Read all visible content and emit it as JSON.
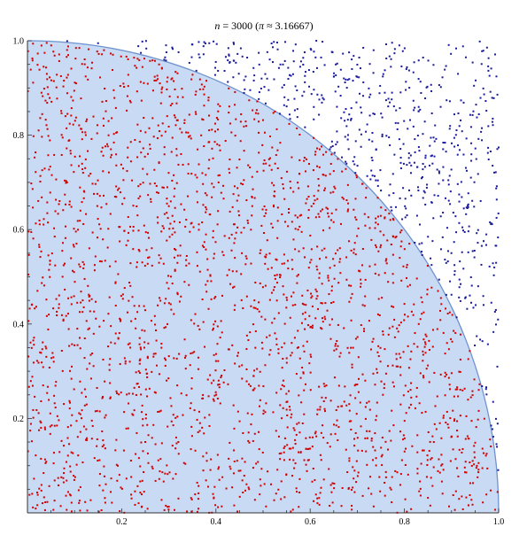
{
  "chart_data": {
    "type": "scatter",
    "title": "n = 3000 (π ≈ 3.16667)",
    "title_parts": {
      "n_symbol": "n",
      "n_value": " = 3000 (",
      "pi_symbol": "π",
      "pi_value": " ≈ 3.16667)"
    },
    "n": 3000,
    "pi_estimate": 3.16667,
    "xlim": [
      0,
      1
    ],
    "ylim": [
      0,
      1
    ],
    "x_ticks": [
      {
        "value": 0.2,
        "label": "0.2"
      },
      {
        "value": 0.4,
        "label": "0.4"
      },
      {
        "value": 0.6,
        "label": "0.6"
      },
      {
        "value": 0.8,
        "label": "0.8"
      },
      {
        "value": 1.0,
        "label": "1.0"
      }
    ],
    "y_ticks": [
      {
        "value": 0.2,
        "label": "0.2"
      },
      {
        "value": 0.4,
        "label": "0.4"
      },
      {
        "value": 0.6,
        "label": "0.6"
      },
      {
        "value": 0.8,
        "label": "0.8"
      },
      {
        "value": 1.0,
        "label": "1.0"
      }
    ],
    "region": {
      "shape": "quarter-circle",
      "radius": 1,
      "fill": "#c8daf4",
      "stroke": "#6f93cf"
    },
    "series": [
      {
        "name": "inside",
        "color": "#d40000",
        "count": 2375
      },
      {
        "name": "outside",
        "color": "#1a1a9c",
        "count": 625
      }
    ],
    "axis_color": "#333333",
    "grid": false
  }
}
